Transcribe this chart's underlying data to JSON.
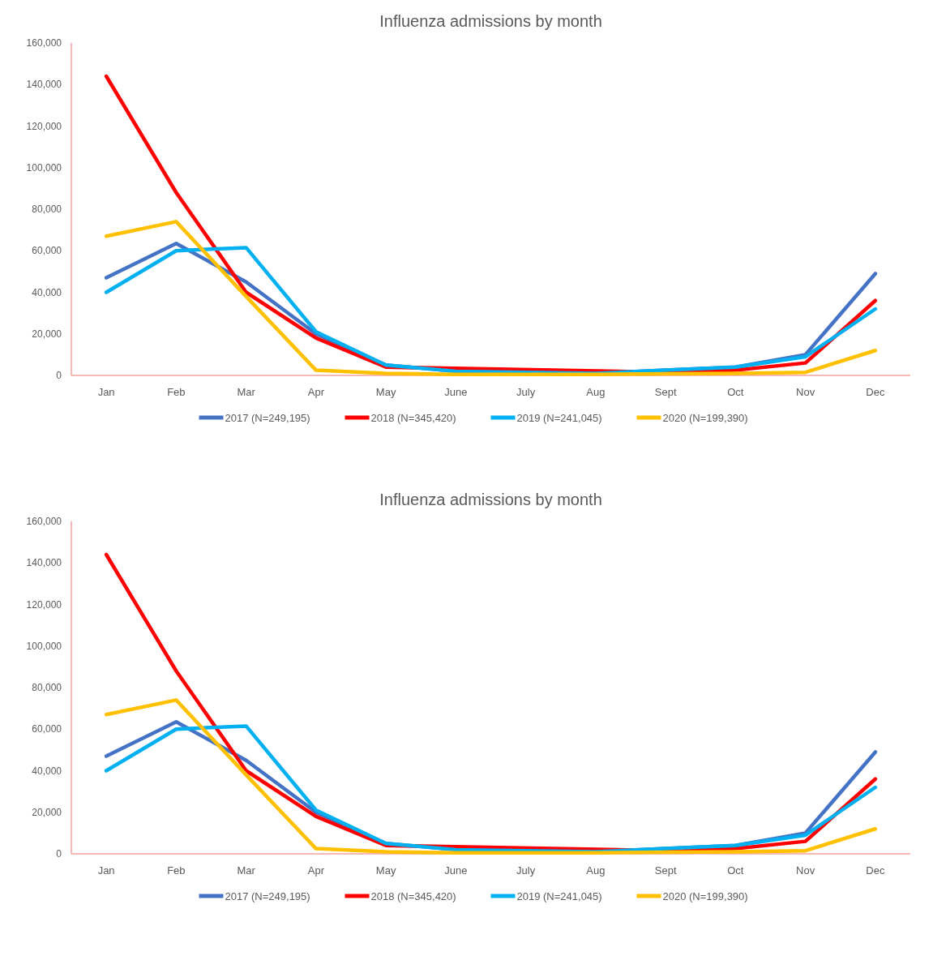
{
  "chart_data": [
    {
      "type": "line",
      "title": "Influenza admissions by month",
      "categories": [
        "Jan",
        "Feb",
        "Mar",
        "Apr",
        "May",
        "June",
        "July",
        "Aug",
        "Sept",
        "Oct",
        "Nov",
        "Dec"
      ],
      "ylim": [
        0,
        160000
      ],
      "yticks": [
        {
          "value": 0,
          "label": "0"
        },
        {
          "value": 20000,
          "label": "20,000"
        },
        {
          "value": 40000,
          "label": "40,000"
        },
        {
          "value": 60000,
          "label": "60,000"
        },
        {
          "value": 80000,
          "label": "80,000"
        },
        {
          "value": 100000,
          "label": "100,000"
        },
        {
          "value": 120000,
          "label": "120,000"
        },
        {
          "value": 140000,
          "label": "140,000"
        },
        {
          "value": 160000,
          "label": "160,000"
        }
      ],
      "grid": false,
      "legend": "bottom",
      "marker": "none",
      "line_style": "solid",
      "series": [
        {
          "name": "2017 (N=249,195)",
          "color": "#4472c4",
          "values": [
            47000,
            63500,
            45000,
            20000,
            5000,
            2000,
            1500,
            1000,
            2500,
            4000,
            10000,
            49000
          ]
        },
        {
          "name": "2018 (N=345,420)",
          "color": "#ff0000",
          "values": [
            144000,
            88000,
            40000,
            18000,
            4000,
            null,
            null,
            null,
            1500,
            2500,
            6000,
            36000
          ]
        },
        {
          "name": "2019 (N=241,045)",
          "color": "#00b0f0",
          "values": [
            40000,
            60000,
            61500,
            21000,
            5000,
            2000,
            1500,
            1000,
            2500,
            4000,
            9000,
            32000
          ]
        },
        {
          "name": "2020 (N=199,390)",
          "color": "#ffc000",
          "values": [
            67000,
            74000,
            38000,
            2500,
            1000,
            500,
            500,
            500,
            800,
            1000,
            1500,
            12000
          ]
        }
      ]
    },
    {
      "type": "line",
      "title": "Influenza admissions by month",
      "categories": [
        "Jan",
        "Feb",
        "Mar",
        "Apr",
        "May",
        "June",
        "July",
        "Aug",
        "Sept",
        "Oct",
        "Nov",
        "Dec"
      ],
      "ylim": [
        0,
        160000
      ],
      "yticks": [
        {
          "value": 0,
          "label": "0"
        },
        {
          "value": 20000,
          "label": "20,000"
        },
        {
          "value": 40000,
          "label": "40,000"
        },
        {
          "value": 60000,
          "label": "60,000"
        },
        {
          "value": 80000,
          "label": "80,000"
        },
        {
          "value": 100000,
          "label": "100,000"
        },
        {
          "value": 120000,
          "label": "120,000"
        },
        {
          "value": 140000,
          "label": "140,000"
        },
        {
          "value": 160000,
          "label": "160,000"
        }
      ],
      "grid": false,
      "legend": "bottom",
      "marker": "none",
      "line_style": "solid",
      "series": [
        {
          "name": "2017 (N=249,195)",
          "color": "#4472c4",
          "values": [
            47000,
            63500,
            45000,
            20000,
            5000,
            2000,
            1500,
            1000,
            2500,
            4000,
            10000,
            49000
          ]
        },
        {
          "name": "2018 (N=345,420)",
          "color": "#ff0000",
          "values": [
            144000,
            88000,
            40000,
            18000,
            4000,
            null,
            null,
            null,
            1500,
            2500,
            6000,
            36000
          ]
        },
        {
          "name": "2019 (N=241,045)",
          "color": "#00b0f0",
          "values": [
            40000,
            60000,
            61500,
            21000,
            5000,
            2000,
            1500,
            1000,
            2500,
            4000,
            9000,
            32000
          ]
        },
        {
          "name": "2020 (N=199,390)",
          "color": "#ffc000",
          "values": [
            67000,
            74000,
            38000,
            2500,
            1000,
            500,
            500,
            500,
            800,
            1000,
            1500,
            12000
          ]
        }
      ]
    }
  ]
}
